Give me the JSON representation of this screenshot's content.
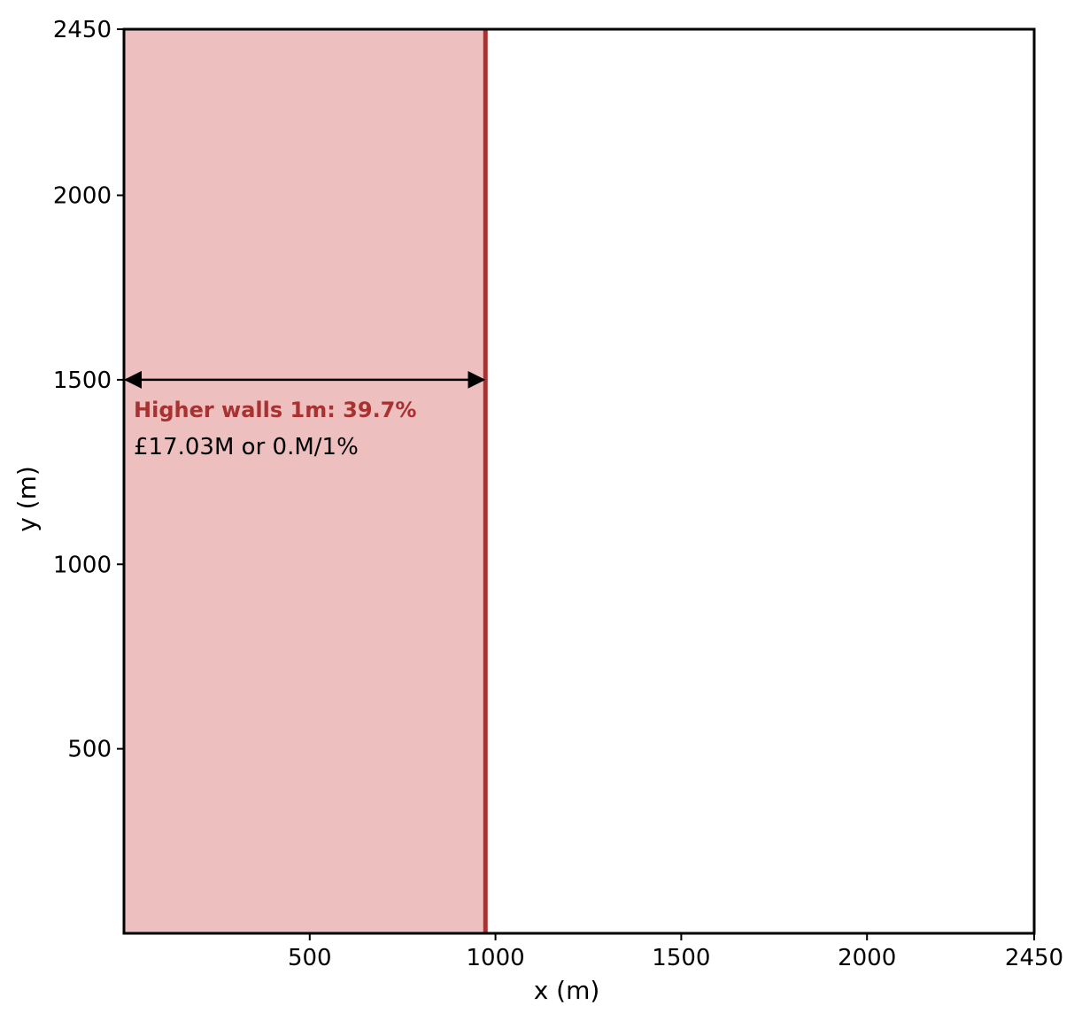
{
  "chart_data": {
    "type": "area",
    "title": "",
    "xlabel": "x (m)",
    "ylabel": "y (m)",
    "xlim": [
      0,
      2450
    ],
    "ylim": [
      0,
      2450
    ],
    "xticks": [
      500,
      1000,
      1500,
      2000,
      2450
    ],
    "yticks": [
      500,
      1000,
      1500,
      2000,
      2450
    ],
    "grid": false,
    "shaded_region": {
      "x_start": 0,
      "x_end": 973,
      "color": "#edbfbf"
    },
    "wall_line": {
      "x": 973,
      "color": "#a83232"
    },
    "arrow": {
      "x_start": 0,
      "x_end": 973,
      "y": 1500
    },
    "annotation": {
      "title": "Higher walls 1m: 39.7%",
      "subtitle": "£17.03M or 0.M/1%",
      "title_color": "#a83232"
    }
  }
}
